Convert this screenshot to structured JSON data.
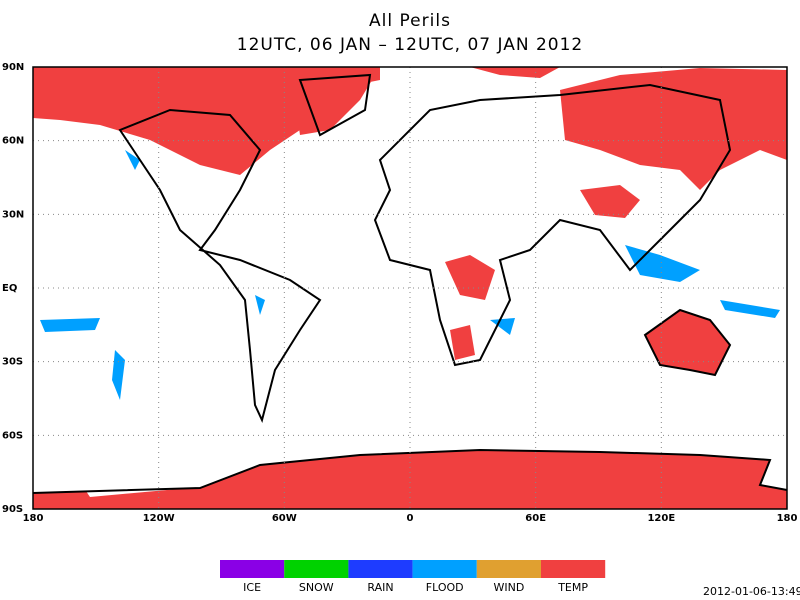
{
  "header": {
    "title": "All Perils",
    "subtitle": "12UTC, 06 JAN – 12UTC, 07 JAN 2012"
  },
  "map": {
    "lat_labels": [
      "90N",
      "60N",
      "30N",
      "EQ",
      "30S",
      "60S",
      "90S"
    ],
    "lon_labels": [
      "180",
      "120W",
      "60W",
      "0",
      "60E",
      "120E",
      "180"
    ]
  },
  "legend": [
    {
      "label": "ICE",
      "color": "#8a00e6"
    },
    {
      "label": "SNOW",
      "color": "#00d200"
    },
    {
      "label": "RAIN",
      "color": "#1e3cff"
    },
    {
      "label": "FLOOD",
      "color": "#00a0ff"
    },
    {
      "label": "WIND",
      "color": "#e0a030"
    },
    {
      "label": "TEMP",
      "color": "#f04040"
    }
  ],
  "timestamp": "2012-01-06-13:49"
}
